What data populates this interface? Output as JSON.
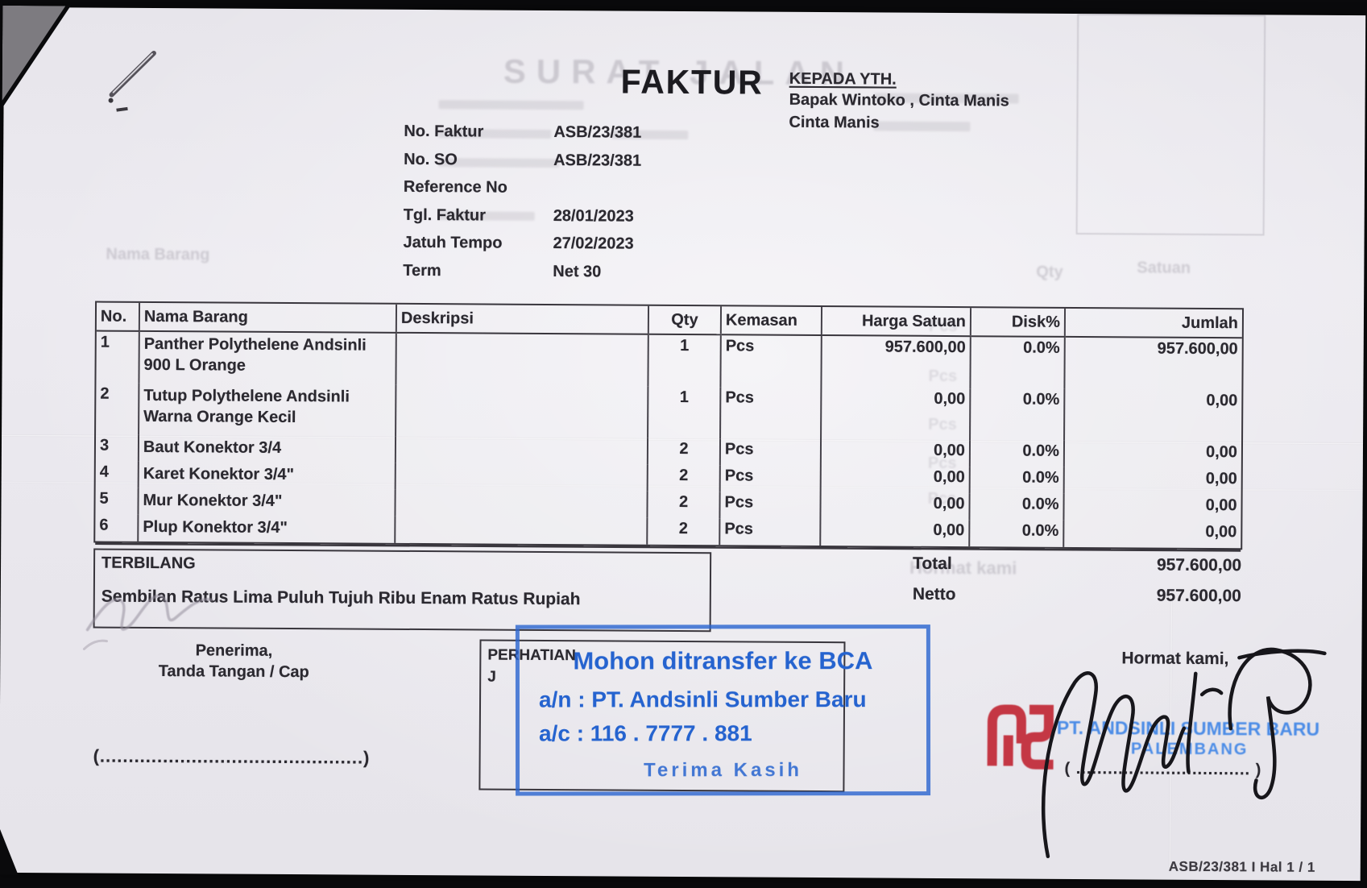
{
  "header": {
    "ghost_title": "SURAT JALAN",
    "title": "FAKTUR",
    "recipient_label": "KEPADA YTH.",
    "recipient_line1": "Bapak Wintoko , Cinta Manis",
    "recipient_line2": "Cinta Manis"
  },
  "meta": {
    "fields": [
      {
        "label": "No. Faktur",
        "value": "ASB/23/381"
      },
      {
        "label": "No. SO",
        "value": "ASB/23/381"
      },
      {
        "label": "Reference No",
        "value": ""
      },
      {
        "label": "Tgl. Faktur",
        "value": "28/01/2023"
      },
      {
        "label": "Jatuh Tempo",
        "value": "27/02/2023"
      },
      {
        "label": "Term",
        "value": "Net 30"
      }
    ]
  },
  "table": {
    "headers": [
      "No.",
      "Nama Barang",
      "Deskripsi",
      "Qty",
      "Kemasan",
      "Harga Satuan",
      "Disk%",
      "Jumlah"
    ],
    "rows": [
      {
        "no": "1",
        "name": "Panther Polythelene Andsinli\n900 L Orange",
        "desc": "",
        "qty": "1",
        "kemasan": "Pcs",
        "harga": "957.600,00",
        "disk": "0.0%",
        "jumlah": "957.600,00"
      },
      {
        "no": "2",
        "name": "Tutup Polythelene Andsinli\nWarna Orange Kecil",
        "desc": "",
        "qty": "1",
        "kemasan": "Pcs",
        "harga": "0,00",
        "disk": "0.0%",
        "jumlah": "0,00"
      },
      {
        "no": "3",
        "name": "Baut Konektor 3/4",
        "desc": "",
        "qty": "2",
        "kemasan": "Pcs",
        "harga": "0,00",
        "disk": "0.0%",
        "jumlah": "0,00"
      },
      {
        "no": "4",
        "name": "Karet Konektor 3/4\"",
        "desc": "",
        "qty": "2",
        "kemasan": "Pcs",
        "harga": "0,00",
        "disk": "0.0%",
        "jumlah": "0,00"
      },
      {
        "no": "5",
        "name": "Mur Konektor 3/4\"",
        "desc": "",
        "qty": "2",
        "kemasan": "Pcs",
        "harga": "0,00",
        "disk": "0.0%",
        "jumlah": "0,00"
      },
      {
        "no": "6",
        "name": "Plup Konektor 3/4\"",
        "desc": "",
        "qty": "2",
        "kemasan": "Pcs",
        "harga": "0,00",
        "disk": "0.0%",
        "jumlah": "0,00"
      }
    ]
  },
  "summary": {
    "terbilang_label": "TERBILANG",
    "terbilang_text": "Sembilan Ratus Lima Puluh Tujuh Ribu Enam Ratus Rupiah",
    "total_label": "Total",
    "total_value": "957.600,00",
    "netto_label": "Netto",
    "netto_value": "957.600,00"
  },
  "bottom": {
    "penerima_line1": "Penerima,",
    "penerima_line2": "Tanda Tangan / Cap",
    "penerima_sign_line": "(..............................................)",
    "perhatian_label": "PERHATIAN",
    "perhatian_line2": "J",
    "transfer_stamp": {
      "line1": "Mohon ditransfer ke BCA",
      "line2": "a/n : PT. Andsinli Sumber Baru",
      "line3": "a/c : 116 . 7777 . 881",
      "line4": "Terima Kasih",
      "color": "#2563cf"
    },
    "hormat_label": "Hormat kami,",
    "company_stamp": {
      "line1": "PT. ANDSINLI SUMBER BARU",
      "line2": "PALEMBANG",
      "color": "#3f85e6"
    },
    "hormat_sign_line": "( ................................. )",
    "page_ref": "ASB/23/381 I Hal 1 / 1"
  },
  "ghosts": {
    "nama_barang": "Nama Barang",
    "qty": "Qty",
    "satuan": "Satuan",
    "pcs": "Pcs",
    "hormat": "Hormat kami"
  },
  "colors": {
    "stamp_blue": "#2563cf",
    "stamp_light_blue": "#3f85e6",
    "logo_red": "#bf1f2d",
    "ink": "#2b2930"
  }
}
